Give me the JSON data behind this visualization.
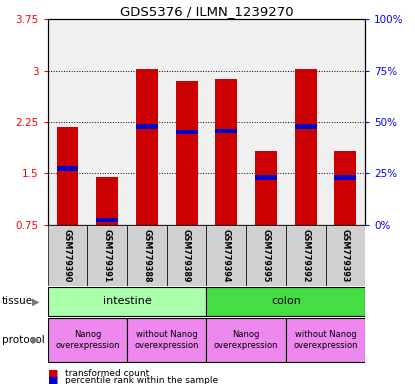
{
  "title": "GDS5376 / ILMN_1239270",
  "samples": [
    "GSM779390",
    "GSM779391",
    "GSM779388",
    "GSM779389",
    "GSM779394",
    "GSM779395",
    "GSM779392",
    "GSM779393"
  ],
  "bar_heights": [
    2.18,
    1.44,
    3.02,
    2.85,
    2.88,
    1.82,
    3.03,
    1.82
  ],
  "blue_marker_y": [
    1.57,
    0.82,
    2.18,
    2.1,
    2.12,
    1.44,
    2.18,
    1.44
  ],
  "bar_color": "#cc0000",
  "blue_color": "#0000cc",
  "ymin": 0.75,
  "ymax": 3.75,
  "yticks": [
    0.75,
    1.5,
    2.25,
    3.0,
    3.75
  ],
  "ytick_labels": [
    "0.75",
    "1.5",
    "2.25",
    "3",
    "3.75"
  ],
  "right_ytick_labels": [
    "0%",
    "25%",
    "50%",
    "75%",
    "100%"
  ],
  "tissue_groups": [
    {
      "label": "intestine",
      "start": 0,
      "end": 4,
      "color": "#aaffaa"
    },
    {
      "label": "colon",
      "start": 4,
      "end": 8,
      "color": "#44dd44"
    }
  ],
  "protocol_groups": [
    {
      "label": "Nanog\noverexpression",
      "start": 0,
      "end": 2,
      "color": "#ee88ee"
    },
    {
      "label": "without Nanog\noverexpression",
      "start": 2,
      "end": 4,
      "color": "#ee88ee"
    },
    {
      "label": "Nanog\noverexpression",
      "start": 4,
      "end": 6,
      "color": "#ee88ee"
    },
    {
      "label": "without Nanog\noverexpression",
      "start": 6,
      "end": 8,
      "color": "#ee88ee"
    }
  ],
  "tissue_label": "tissue",
  "protocol_label": "protocol",
  "legend_red": "transformed count",
  "legend_blue": "percentile rank within the sample",
  "bar_width": 0.55,
  "bg_plot": "#f0f0f0",
  "bg_label": "#cccccc"
}
